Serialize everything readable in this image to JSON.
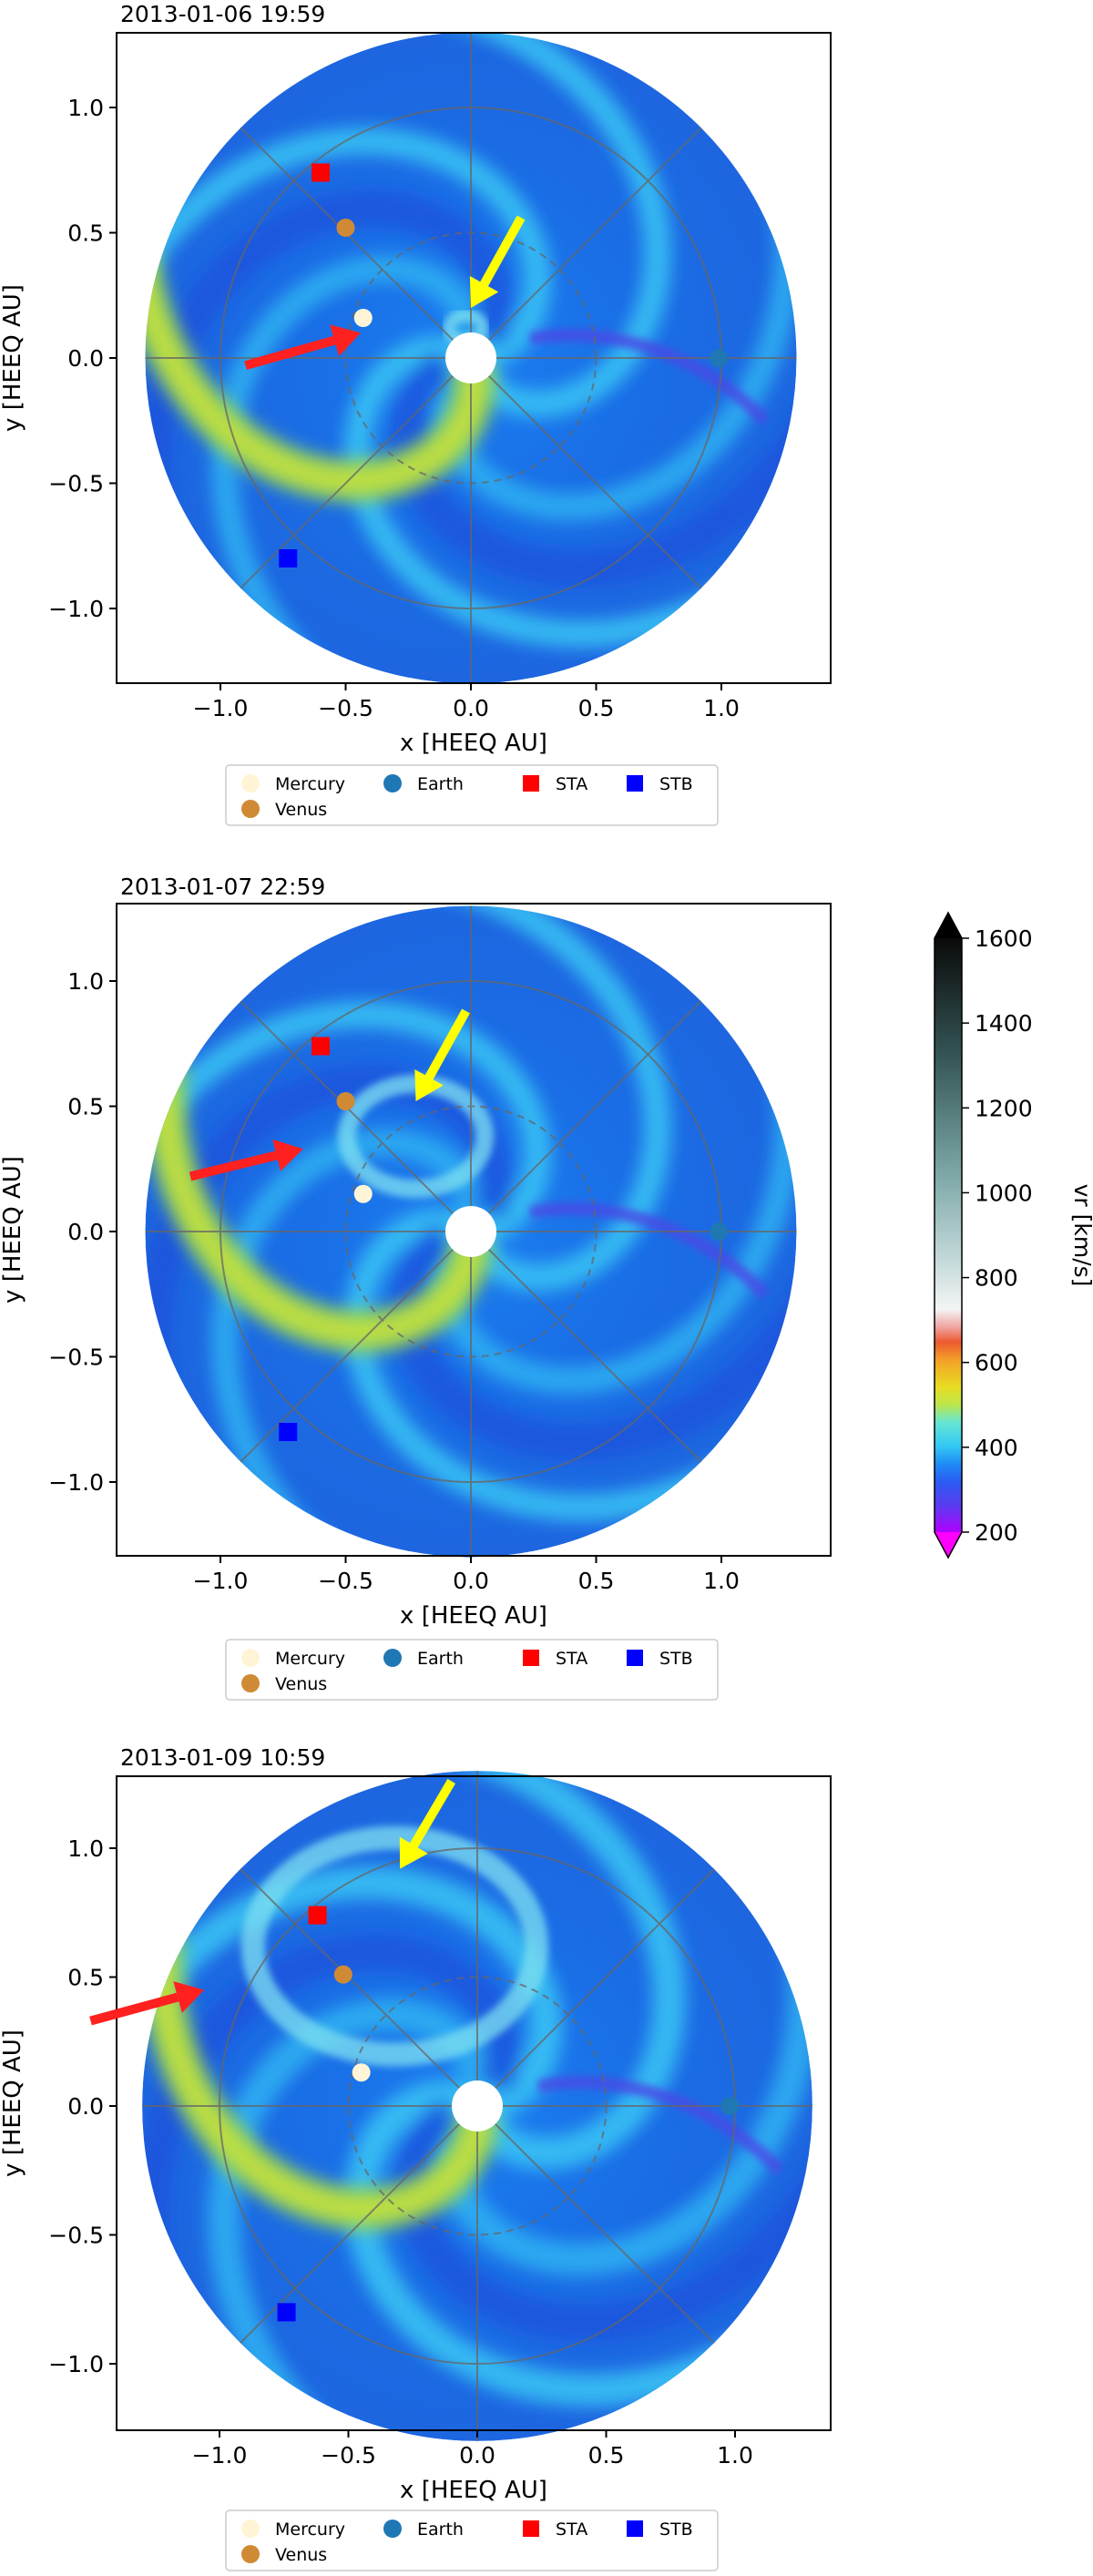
{
  "chart_data": [
    {
      "type": "heatmap",
      "title": "2013-01-06 19:59",
      "xlabel": "x [HEEQ AU]",
      "ylabel": "y [HEEQ AU]",
      "xlim": [
        -1.4,
        1.4
      ],
      "ylim": [
        -1.3,
        1.3
      ],
      "xticks": [
        -1.0,
        -0.5,
        0.0,
        0.5,
        1.0
      ],
      "yticks": [
        -1.0,
        -0.5,
        0.0,
        0.5,
        1.0
      ],
      "xtick_labels": [
        "−1.0",
        "−0.5",
        "0.0",
        "0.5",
        "1.0"
      ],
      "ytick_labels": [
        "−1.0",
        "−0.5",
        "0.0",
        "0.5",
        "1.0"
      ],
      "grid_circles_au": [
        0.5,
        1.0
      ],
      "domain_radius_au": 1.3,
      "markers": [
        {
          "name": "Mercury",
          "x": -0.43,
          "y": 0.16,
          "color": "#fff5d6",
          "shape": "circle"
        },
        {
          "name": "Venus",
          "x": -0.5,
          "y": 0.52,
          "color": "#d08a35",
          "shape": "circle"
        },
        {
          "name": "Earth",
          "x": 0.99,
          "y": 0.0,
          "color": "#1f77b4",
          "shape": "circle"
        },
        {
          "name": "STA",
          "x": -0.6,
          "y": 0.74,
          "color": "#ff0000",
          "shape": "square"
        },
        {
          "name": "STB",
          "x": -0.73,
          "y": -0.8,
          "color": "#0000ff",
          "shape": "square"
        }
      ],
      "arrows": [
        {
          "color": "red",
          "from": [
            -0.9,
            -0.03
          ],
          "to": [
            -0.44,
            0.1
          ]
        },
        {
          "color": "yellow",
          "from": [
            0.2,
            0.56
          ],
          "to": [
            0.0,
            0.2
          ]
        }
      ],
      "legend_position": "bottom"
    },
    {
      "type": "heatmap",
      "title": "2013-01-07 22:59",
      "xlabel": "x [HEEQ AU]",
      "ylabel": "y [HEEQ AU]",
      "xlim": [
        -1.4,
        1.4
      ],
      "ylim": [
        -1.3,
        1.3
      ],
      "xticks": [
        -1.0,
        -0.5,
        0.0,
        0.5,
        1.0
      ],
      "yticks": [
        -1.0,
        -0.5,
        0.0,
        0.5,
        1.0
      ],
      "xtick_labels": [
        "−1.0",
        "−0.5",
        "0.0",
        "0.5",
        "1.0"
      ],
      "ytick_labels": [
        "−1.0",
        "−0.5",
        "0.0",
        "0.5",
        "1.0"
      ],
      "grid_circles_au": [
        0.5,
        1.0
      ],
      "domain_radius_au": 1.3,
      "markers": [
        {
          "name": "Mercury",
          "x": -0.43,
          "y": 0.15,
          "color": "#fff5d6",
          "shape": "circle"
        },
        {
          "name": "Venus",
          "x": -0.5,
          "y": 0.52,
          "color": "#d08a35",
          "shape": "circle"
        },
        {
          "name": "Earth",
          "x": 0.99,
          "y": 0.0,
          "color": "#1f77b4",
          "shape": "circle"
        },
        {
          "name": "STA",
          "x": -0.6,
          "y": 0.74,
          "color": "#ff0000",
          "shape": "square"
        },
        {
          "name": "STB",
          "x": -0.73,
          "y": -0.8,
          "color": "#0000ff",
          "shape": "square"
        }
      ],
      "arrows": [
        {
          "color": "red",
          "from": [
            -1.12,
            0.22
          ],
          "to": [
            -0.67,
            0.33
          ]
        },
        {
          "color": "yellow",
          "from": [
            -0.02,
            0.88
          ],
          "to": [
            -0.22,
            0.52
          ]
        }
      ],
      "legend_position": "bottom"
    },
    {
      "type": "heatmap",
      "title": "2013-01-09 10:59",
      "xlabel": "x [HEEQ AU]",
      "ylabel": "y [HEEQ AU]",
      "xlim": [
        -1.4,
        1.3
      ],
      "ylim": [
        -1.3,
        1.3
      ],
      "xticks": [
        -1.0,
        -0.5,
        0.0,
        0.5,
        1.0
      ],
      "yticks": [
        -1.0,
        -0.5,
        0.0,
        0.5,
        1.0
      ],
      "xtick_labels": [
        "−1.0",
        "−0.5",
        "0.0",
        "0.5",
        "1.0"
      ],
      "ytick_labels": [
        "−1.0",
        "−0.5",
        "0.0",
        "0.5",
        "1.0"
      ],
      "grid_circles_au": [
        0.5,
        1.0
      ],
      "domain_radius_au": 1.3,
      "markers": [
        {
          "name": "Mercury",
          "x": -0.45,
          "y": 0.13,
          "color": "#fff5d6",
          "shape": "circle"
        },
        {
          "name": "Venus",
          "x": -0.52,
          "y": 0.51,
          "color": "#d08a35",
          "shape": "circle"
        },
        {
          "name": "Earth",
          "x": 0.98,
          "y": 0.0,
          "color": "#1f77b4",
          "shape": "circle"
        },
        {
          "name": "STA",
          "x": -0.62,
          "y": 0.74,
          "color": "#ff0000",
          "shape": "square"
        },
        {
          "name": "STB",
          "x": -0.74,
          "y": -0.8,
          "color": "#0000ff",
          "shape": "square"
        }
      ],
      "arrows": [
        {
          "color": "red",
          "from": [
            -1.5,
            0.33
          ],
          "to": [
            -1.06,
            0.45
          ]
        },
        {
          "color": "yellow",
          "from": [
            -0.1,
            1.26
          ],
          "to": [
            -0.3,
            0.92
          ]
        }
      ],
      "legend_position": "bottom"
    }
  ],
  "legend": {
    "entries": [
      {
        "label": "Mercury",
        "color": "#fff5d6",
        "shape": "circle"
      },
      {
        "label": "Earth",
        "color": "#1f77b4",
        "shape": "circle"
      },
      {
        "label": "STA",
        "color": "#ff0000",
        "shape": "square"
      },
      {
        "label": "STB",
        "color": "#0000ff",
        "shape": "square"
      },
      {
        "label": "Venus",
        "color": "#d08a35",
        "shape": "circle"
      }
    ]
  },
  "colorbar": {
    "label": "vr  [km/s]",
    "min": 200,
    "max": 1600,
    "ticks": [
      200,
      400,
      600,
      800,
      1000,
      1200,
      1400,
      1600
    ],
    "tick_labels": [
      "200",
      "400",
      "600",
      "800",
      "1000",
      "1200",
      "1400",
      "1600"
    ],
    "extend": "both",
    "low_color": "#ff00ff",
    "high_color": "#000000"
  }
}
